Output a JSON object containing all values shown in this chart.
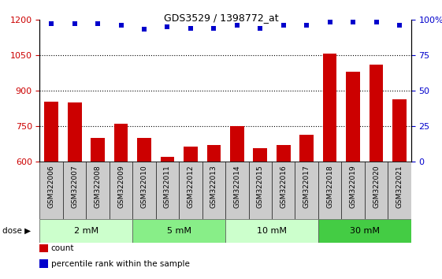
{
  "title": "GDS3529 / 1398772_at",
  "categories": [
    "GSM322006",
    "GSM322007",
    "GSM322008",
    "GSM322009",
    "GSM322010",
    "GSM322011",
    "GSM322012",
    "GSM322013",
    "GSM322014",
    "GSM322015",
    "GSM322016",
    "GSM322017",
    "GSM322018",
    "GSM322019",
    "GSM322020",
    "GSM322021"
  ],
  "bar_values": [
    855,
    850,
    700,
    760,
    700,
    622,
    665,
    670,
    752,
    658,
    672,
    715,
    1055,
    980,
    1010,
    865
  ],
  "scatter_values": [
    97,
    97,
    97,
    96,
    93,
    95,
    94,
    94,
    96,
    94,
    96,
    96,
    98,
    98,
    98,
    96
  ],
  "bar_color": "#cc0000",
  "scatter_color": "#0000cc",
  "ylim_left": [
    600,
    1200
  ],
  "ylim_right": [
    0,
    100
  ],
  "yticks_left": [
    600,
    750,
    900,
    1050,
    1200
  ],
  "yticks_right": [
    0,
    25,
    50,
    75,
    100
  ],
  "dose_groups": [
    {
      "label": "2 mM",
      "start": 0,
      "end": 4,
      "color": "#ccffcc"
    },
    {
      "label": "5 mM",
      "start": 4,
      "end": 8,
      "color": "#88ee88"
    },
    {
      "label": "10 mM",
      "start": 8,
      "end": 12,
      "color": "#ccffcc"
    },
    {
      "label": "30 mM",
      "start": 12,
      "end": 16,
      "color": "#44cc44"
    }
  ],
  "dose_label": "dose",
  "legend_items": [
    {
      "label": "count",
      "color": "#cc0000"
    },
    {
      "label": "percentile rank within the sample",
      "color": "#0000cc"
    }
  ],
  "grid_yticks": [
    750,
    900,
    1050
  ],
  "xtick_bg_color": "#cccccc",
  "fig_bg_color": "#ffffff"
}
